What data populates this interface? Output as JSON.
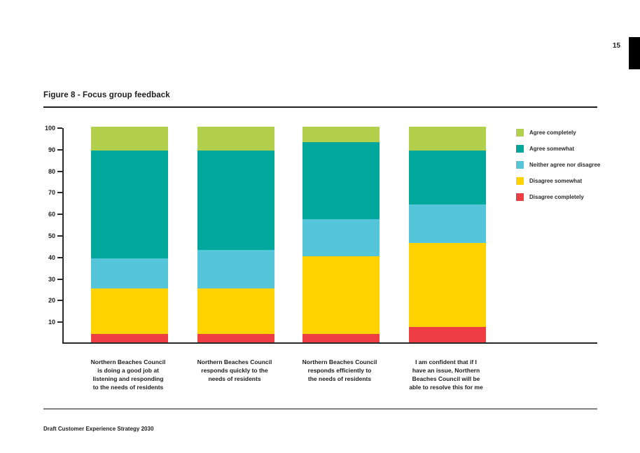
{
  "page": {
    "number": "15",
    "title": "Figure 8 - Focus group feedback",
    "footer": "Draft Customer Experience Strategy 2030"
  },
  "chart_data": {
    "type": "bar",
    "stacked": true,
    "title": "Figure 8 - Focus group feedback",
    "ylim": [
      0,
      100
    ],
    "ytick_interval": 10,
    "ytick_labels": [
      "10",
      "20",
      "30",
      "40",
      "50",
      "60",
      "70",
      "80",
      "90",
      "100"
    ],
    "grid": false,
    "legend_position": "right",
    "axis_color": "#2a2a2a",
    "categories": [
      {
        "lines": [
          "Northern Beaches Council",
          "is doing a good job at",
          "listening and responding",
          "to the needs of residents"
        ]
      },
      {
        "lines": [
          "Northern Beaches Council",
          "responds quickly to the",
          "needs of residents"
        ]
      },
      {
        "lines": [
          "Northern Beaches Council",
          "responds efficiently to",
          "the needs of residents"
        ]
      },
      {
        "lines": [
          "I am confident that if I",
          "have an issue, Northern",
          "Beaches Council will be",
          "able to resolve this for me"
        ]
      }
    ],
    "series": [
      {
        "name": "Disagree completely",
        "color": "#ee3e44",
        "values": [
          4,
          4,
          4,
          7
        ]
      },
      {
        "name": "Disagree somewhat",
        "color": "#ffd200",
        "values": [
          21,
          21,
          36,
          39
        ]
      },
      {
        "name": "Neither agree nor disagree",
        "color": "#55c6d9",
        "values": [
          14,
          18,
          17,
          18
        ]
      },
      {
        "name": "Agree somewhat",
        "color": "#00a79b",
        "values": [
          50,
          46,
          36,
          25
        ]
      },
      {
        "name": "Agree completely",
        "color": "#b2d04b",
        "values": [
          11,
          11,
          7,
          11
        ]
      }
    ],
    "legend_order": [
      "Agree completely",
      "Agree somewhat",
      "Neither agree nor disagree",
      "Disagree somewhat",
      "Disagree completely"
    ]
  }
}
